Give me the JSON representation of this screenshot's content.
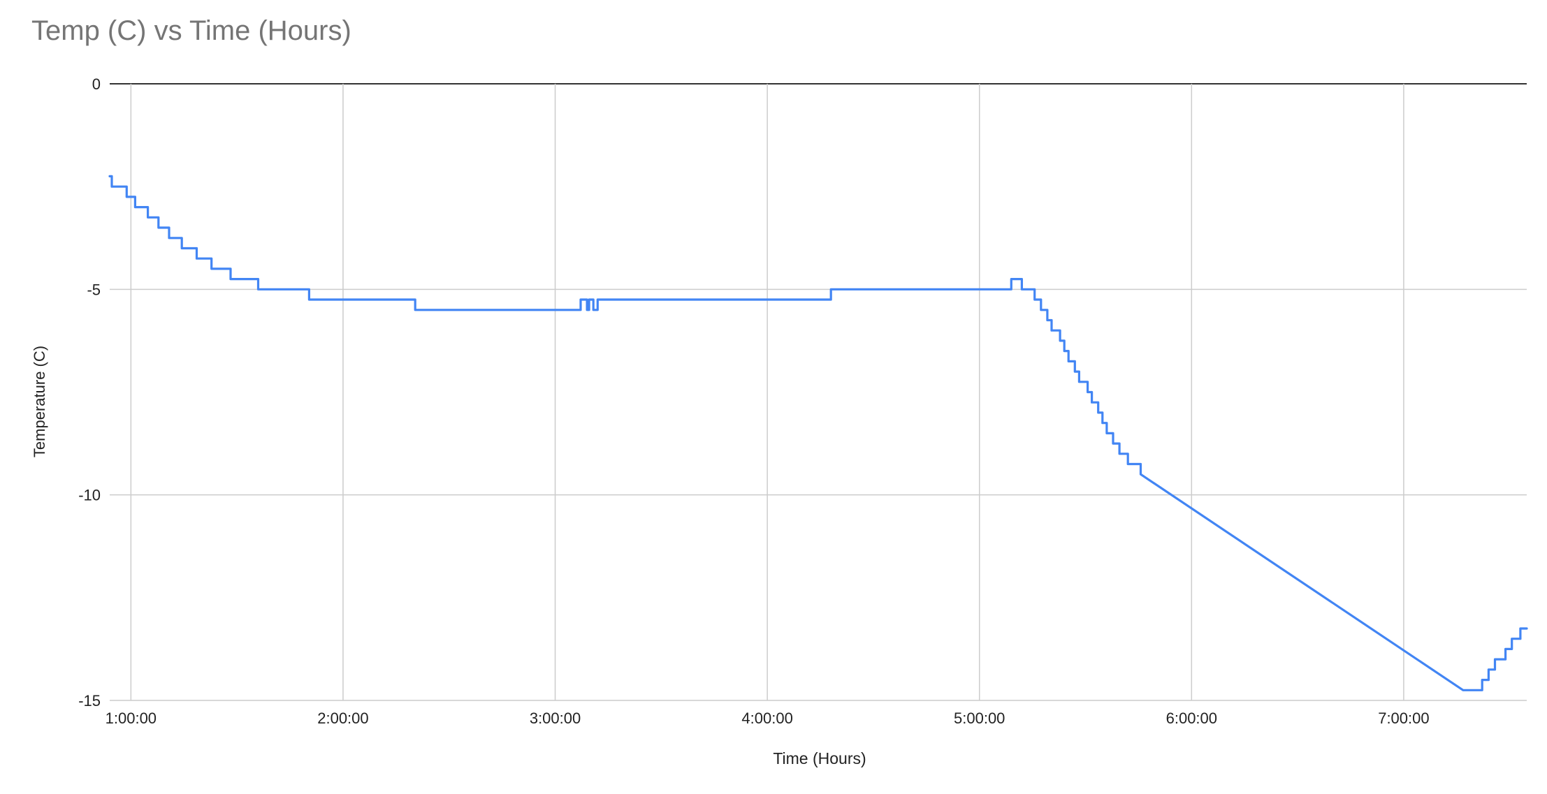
{
  "chart_data": {
    "type": "line",
    "title": "Temp (C) vs Time (Hours)",
    "xlabel": "Time (Hours)",
    "ylabel": "Temperature (C)",
    "x_unit": "hours",
    "xlim": [
      0.9,
      7.58
    ],
    "ylim": [
      -15,
      0
    ],
    "x_ticks": [
      1,
      2,
      3,
      4,
      5,
      6,
      7
    ],
    "x_tick_labels": [
      "1:00:00",
      "2:00:00",
      "3:00:00",
      "4:00:00",
      "5:00:00",
      "6:00:00",
      "7:00:00"
    ],
    "y_ticks": [
      0,
      -5,
      -10,
      -15
    ],
    "y_tick_labels": [
      "0",
      "-5",
      "-10",
      "-15"
    ],
    "grid": true,
    "legend": "none",
    "colors": {
      "line": "#4285f4",
      "grid": "#cccccc",
      "baseline": "#333333",
      "tick_text": "#222222",
      "title": "#757575"
    },
    "series": [
      {
        "values_x": [
          0.9,
          0.91,
          0.91,
          0.98,
          0.98,
          1.02,
          1.02,
          1.08,
          1.08,
          1.13,
          1.13,
          1.18,
          1.18,
          1.24,
          1.24,
          1.31,
          1.31,
          1.38,
          1.38,
          1.47,
          1.47,
          1.6,
          1.6,
          1.84,
          1.84,
          2.34,
          2.34,
          3.12,
          3.12,
          3.15,
          3.15,
          3.16,
          3.16,
          3.18,
          3.18,
          3.2,
          3.2,
          4.3,
          4.3,
          5.15,
          5.15,
          5.2,
          5.2,
          5.26,
          5.26,
          5.29,
          5.29,
          5.32,
          5.32,
          5.34,
          5.34,
          5.38,
          5.38,
          5.4,
          5.4,
          5.42,
          5.42,
          5.45,
          5.45,
          5.47,
          5.47,
          5.51,
          5.51,
          5.53,
          5.53,
          5.56,
          5.56,
          5.58,
          5.58,
          5.6,
          5.6,
          5.63,
          5.63,
          5.66,
          5.66,
          5.7,
          5.7,
          5.76,
          5.76,
          7.28,
          7.37,
          7.37,
          7.4,
          7.4,
          7.43,
          7.43,
          7.48,
          7.48,
          7.51,
          7.51,
          7.55,
          7.55,
          7.58
        ],
        "values_y": [
          -2.25,
          -2.25,
          -2.5,
          -2.5,
          -2.75,
          -2.75,
          -3.0,
          -3.0,
          -3.25,
          -3.25,
          -3.5,
          -3.5,
          -3.75,
          -3.75,
          -4.0,
          -4.0,
          -4.25,
          -4.25,
          -4.5,
          -4.5,
          -4.75,
          -4.75,
          -5.0,
          -5.0,
          -5.25,
          -5.25,
          -5.5,
          -5.5,
          -5.25,
          -5.25,
          -5.5,
          -5.5,
          -5.25,
          -5.25,
          -5.5,
          -5.5,
          -5.25,
          -5.25,
          -5.0,
          -5.0,
          -4.75,
          -4.75,
          -5.0,
          -5.0,
          -5.25,
          -5.25,
          -5.5,
          -5.5,
          -5.75,
          -5.75,
          -6.0,
          -6.0,
          -6.25,
          -6.25,
          -6.5,
          -6.5,
          -6.75,
          -6.75,
          -7.0,
          -7.0,
          -7.25,
          -7.25,
          -7.5,
          -7.5,
          -7.75,
          -7.75,
          -8.0,
          -8.0,
          -8.25,
          -8.25,
          -8.5,
          -8.5,
          -8.75,
          -8.75,
          -9.0,
          -9.0,
          -9.25,
          -9.25,
          -9.5,
          -14.75,
          -14.75,
          -14.5,
          -14.5,
          -14.25,
          -14.25,
          -14.0,
          -14.0,
          -13.75,
          -13.75,
          -13.5,
          -13.5,
          -13.25,
          -13.25
        ]
      }
    ]
  }
}
